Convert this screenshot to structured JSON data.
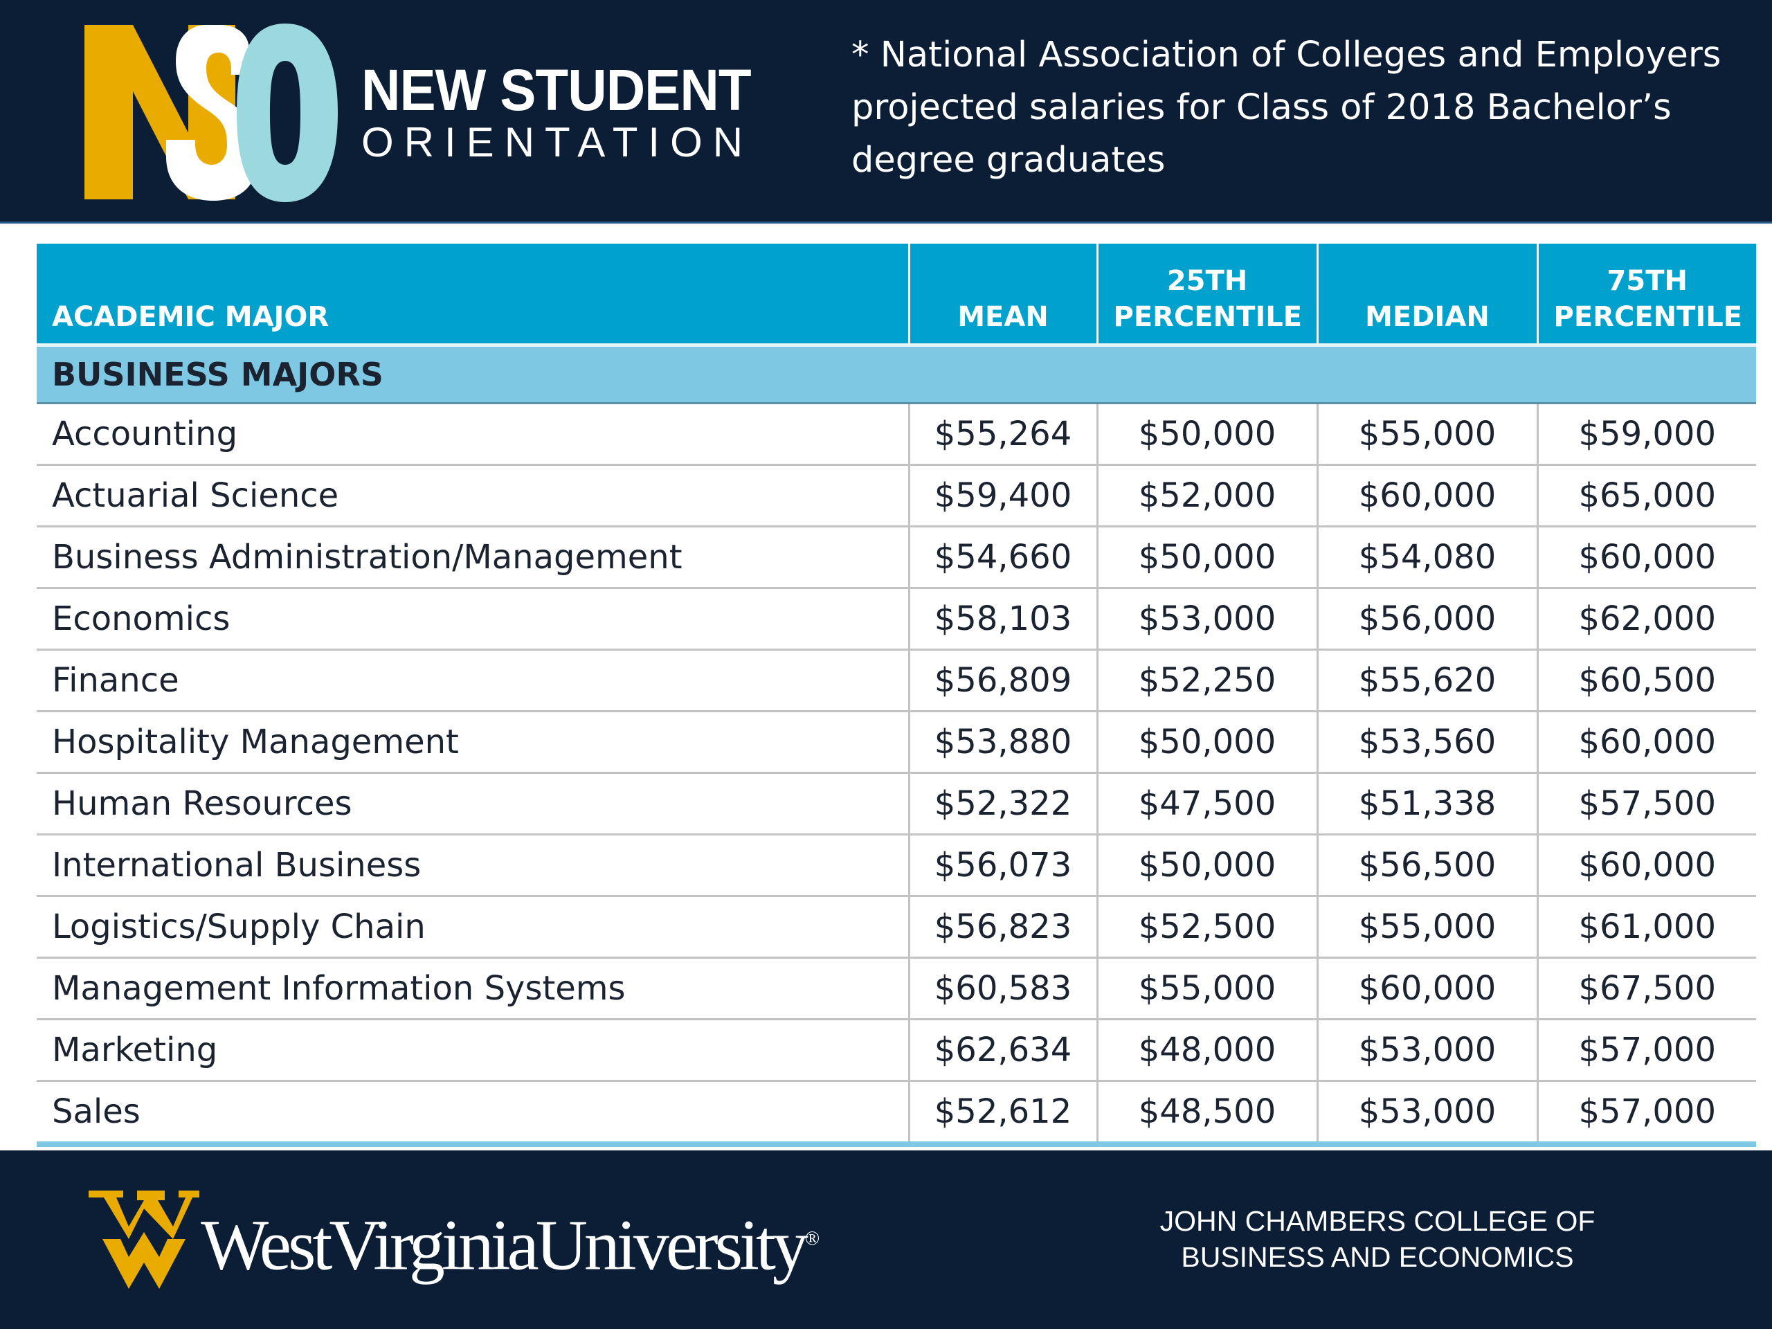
{
  "header": {
    "logo_letters": "NSO",
    "logo_line1": "NEW STUDENT",
    "logo_line2": "ORIENTATION",
    "footnote": "* National Association of Colleges and Employers projected salaries for Class of 2018 Bachelor’s degree graduates",
    "colors": {
      "background": "#0c1e36",
      "gold": "#eaab00",
      "teal": "#9cd9de"
    }
  },
  "table": {
    "headers": {
      "major": "ACADEMIC MAJOR",
      "mean": "MEAN",
      "p25_line1": "25TH",
      "p25_line2": "PERCENTILE",
      "median": "MEDIAN",
      "p75_line1": "75TH",
      "p75_line2": "PERCENTILE"
    },
    "group_label": "BUSINESS MAJORS",
    "rows": [
      {
        "major": "Accounting",
        "mean": "$55,264",
        "p25": "$50,000",
        "median": "$55,000",
        "p75": "$59,000"
      },
      {
        "major": "Actuarial Science",
        "mean": "$59,400",
        "p25": "$52,000",
        "median": "$60,000",
        "p75": "$65,000"
      },
      {
        "major": "Business Administration/Management",
        "mean": "$54,660",
        "p25": "$50,000",
        "median": "$54,080",
        "p75": "$60,000"
      },
      {
        "major": "Economics",
        "mean": "$58,103",
        "p25": "$53,000",
        "median": "$56,000",
        "p75": "$62,000"
      },
      {
        "major": "Finance",
        "mean": "$56,809",
        "p25": "$52,250",
        "median": "$55,620",
        "p75": "$60,500"
      },
      {
        "major": "Hospitality Management",
        "mean": "$53,880",
        "p25": "$50,000",
        "median": "$53,560",
        "p75": "$60,000"
      },
      {
        "major": "Human Resources",
        "mean": "$52,322",
        "p25": "$47,500",
        "median": "$51,338",
        "p75": "$57,500"
      },
      {
        "major": "International Business",
        "mean": "$56,073",
        "p25": "$50,000",
        "median": "$56,500",
        "p75": "$60,000"
      },
      {
        "major": "Logistics/Supply Chain",
        "mean": "$56,823",
        "p25": "$52,500",
        "median": "$55,000",
        "p75": "$61,000"
      },
      {
        "major": "Management Information Systems",
        "mean": "$60,583",
        "p25": "$55,000",
        "median": "$60,000",
        "p75": "$67,500"
      },
      {
        "major": "Marketing",
        "mean": "$62,634",
        "p25": "$48,000",
        "median": "$53,000",
        "p75": "$57,000"
      },
      {
        "major": "Sales",
        "mean": "$52,612",
        "p25": "$48,500",
        "median": "$53,000",
        "p75": "$57,000"
      }
    ],
    "colors": {
      "header": "#00a1cc",
      "group": "#7ec8e3"
    }
  },
  "footer": {
    "university": "WestVirginiaUniversity",
    "registered_mark": "®",
    "college_line1": "JOHN CHAMBERS COLLEGE OF",
    "college_line2": "BUSINESS AND ECONOMICS",
    "colors": {
      "gold": "#eaab00"
    }
  }
}
